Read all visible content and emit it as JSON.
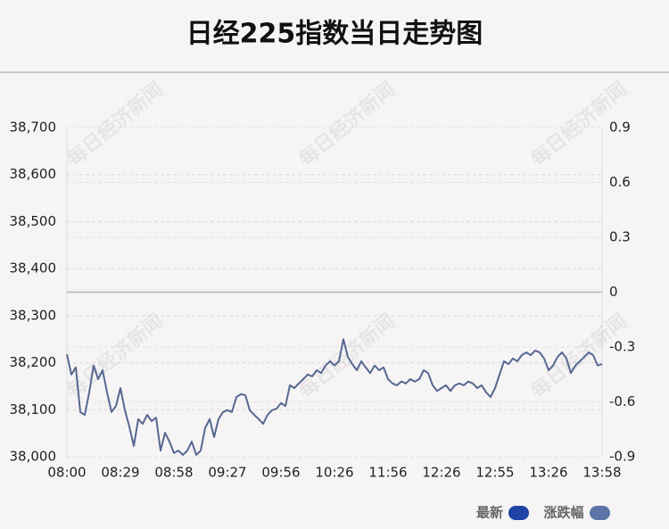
{
  "chart_data": {
    "type": "line",
    "title": "日经225指数当日走势图",
    "watermark": "每日经济新闻",
    "categories": [
      "08:00",
      null,
      null,
      null,
      null,
      null,
      null,
      null,
      null,
      null,
      null,
      null,
      "08:29",
      null,
      null,
      null,
      null,
      null,
      null,
      null,
      null,
      null,
      null,
      null,
      "08:58",
      null,
      null,
      null,
      null,
      null,
      null,
      null,
      null,
      null,
      null,
      null,
      "09:27",
      null,
      null,
      null,
      null,
      null,
      null,
      null,
      null,
      null,
      null,
      null,
      "09:56",
      null,
      null,
      null,
      null,
      null,
      null,
      null,
      null,
      null,
      null,
      null,
      "10:26",
      null,
      null,
      null,
      null,
      null,
      null,
      null,
      null,
      null,
      null,
      null,
      "11:56",
      null,
      null,
      null,
      null,
      null,
      null,
      null,
      null,
      null,
      null,
      null,
      "12:26",
      null,
      null,
      null,
      null,
      null,
      null,
      null,
      null,
      null,
      null,
      null,
      "12:55",
      null,
      null,
      null,
      null,
      null,
      null,
      null,
      null,
      null,
      null,
      null,
      "13:26",
      null,
      null,
      null,
      null,
      null,
      null,
      null,
      null,
      null,
      null,
      null,
      "13:58"
    ],
    "series": [
      {
        "name": "最新",
        "color": "#56688f",
        "values": [
          38218,
          38175,
          38190,
          38095,
          38089,
          38137,
          38194,
          38165,
          38184,
          38137,
          38095,
          38108,
          38146,
          38099,
          38064,
          38023,
          38080,
          38070,
          38089,
          38076,
          38083,
          38013,
          38051,
          38032,
          38008,
          38013,
          38004,
          38013,
          38032,
          38004,
          38013,
          38061,
          38080,
          38042,
          38080,
          38095,
          38099,
          38095,
          38127,
          38133,
          38131,
          38099,
          38089,
          38080,
          38070,
          38089,
          38099,
          38102,
          38114,
          38108,
          38152,
          38146,
          38156,
          38165,
          38175,
          38171,
          38184,
          38178,
          38194,
          38203,
          38194,
          38203,
          38250,
          38212,
          38197,
          38184,
          38203,
          38190,
          38178,
          38194,
          38184,
          38190,
          38165,
          38156,
          38152,
          38160,
          38156,
          38165,
          38160,
          38165,
          38184,
          38178,
          38152,
          38140,
          38146,
          38152,
          38140,
          38152,
          38156,
          38152,
          38160,
          38156,
          38146,
          38152,
          38137,
          38127,
          38146,
          38175,
          38203,
          38197,
          38209,
          38203,
          38216,
          38222,
          38216,
          38226,
          38222,
          38209,
          38184,
          38194,
          38212,
          38222,
          38209,
          38178,
          38194,
          38203,
          38212,
          38222,
          38216,
          38194,
          38197
        ]
      }
    ],
    "legend": [
      {
        "name": "最新",
        "color": "#1f43a6"
      },
      {
        "name": "涨跌幅",
        "color": "#5d74a8"
      }
    ],
    "ylim": [
      38000,
      38700
    ],
    "yticks": [
      {
        "value": 38000,
        "label": "38,000"
      },
      {
        "value": 38100,
        "label": "38,100"
      },
      {
        "value": 38200,
        "label": "38,200"
      },
      {
        "value": 38300,
        "label": "38,300"
      },
      {
        "value": 38400,
        "label": "38,400"
      },
      {
        "value": 38500,
        "label": "38,500"
      },
      {
        "value": 38600,
        "label": "38,600"
      },
      {
        "value": 38700,
        "label": "38,700"
      }
    ],
    "y2lim": [
      -0.9,
      0.9
    ],
    "y2ticks": [
      0.9,
      0.6,
      0.3,
      0,
      -0.3,
      -0.6,
      -0.9
    ],
    "y2_baseline": 0,
    "grid": true
  }
}
